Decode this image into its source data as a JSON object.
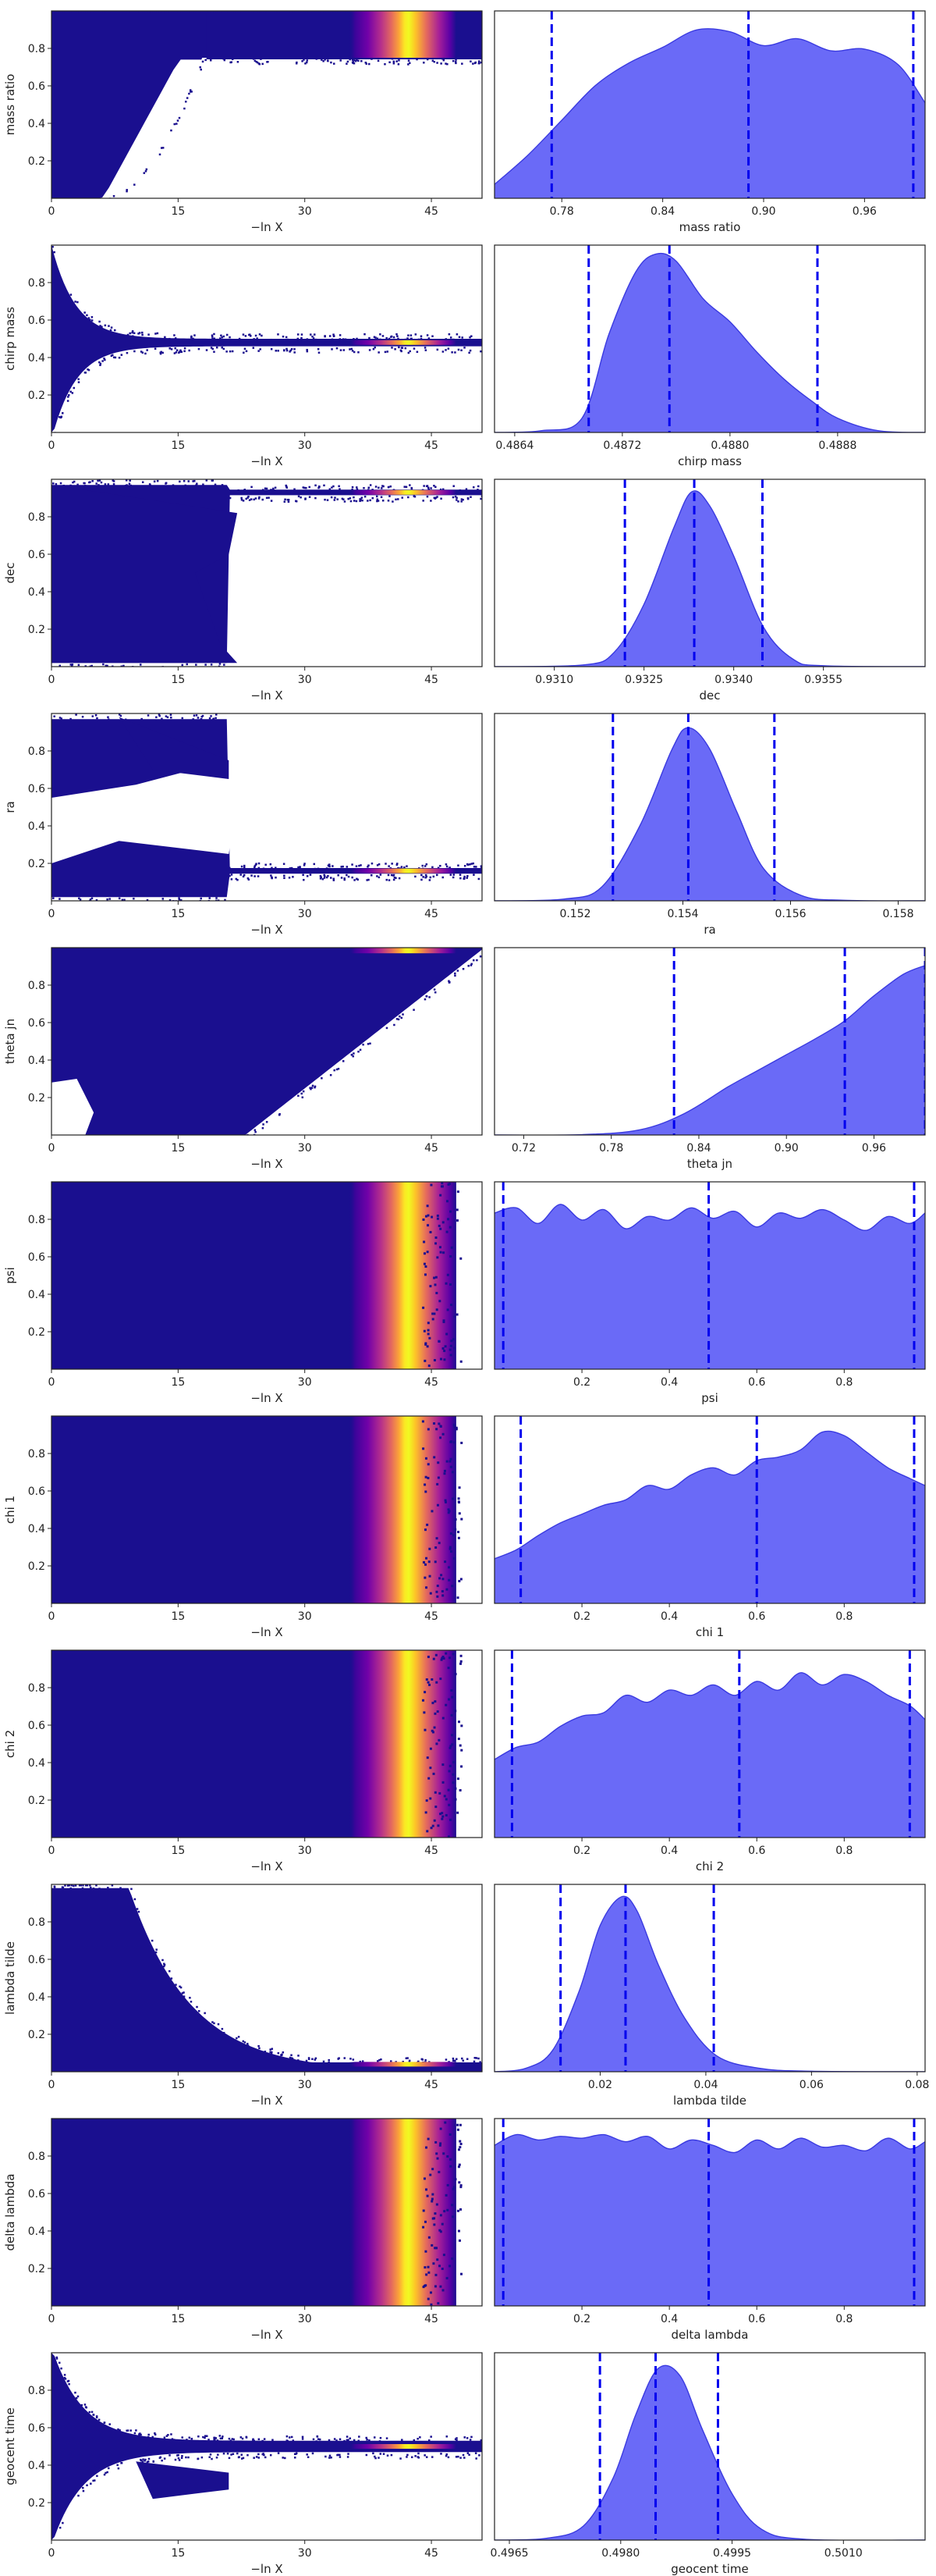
{
  "figure": {
    "xlabel_trace": "−ln X"
  },
  "chart_data": [
    {
      "type": "trace",
      "param": "mass ratio",
      "ylabel": "mass ratio",
      "xlim": [
        0,
        51
      ],
      "xticks": [
        "0",
        "15",
        "30",
        "45"
      ],
      "ylim": [
        0,
        1
      ],
      "yticks": [
        "0.2",
        "0.4",
        "0.6",
        "0.8"
      ],
      "trace_shape": "plateau",
      "converge_y": 0.75,
      "spread": 0.24,
      "onset": 8,
      "band_color": "#1a0f8f"
    },
    {
      "type": "area",
      "param": "mass ratio",
      "xlabel": "mass ratio",
      "xlim": [
        0.74,
        0.996
      ],
      "xticks": [
        0.78,
        0.84,
        0.9,
        0.96
      ],
      "ylim": [
        0,
        1.08
      ],
      "quantiles": [
        0.774,
        0.891,
        0.989
      ],
      "x": [
        0.74,
        0.76,
        0.78,
        0.8,
        0.82,
        0.84,
        0.86,
        0.88,
        0.9,
        0.92,
        0.94,
        0.96,
        0.98,
        0.996
      ],
      "y": [
        0.08,
        0.25,
        0.45,
        0.65,
        0.78,
        0.87,
        0.97,
        0.96,
        0.88,
        0.92,
        0.85,
        0.86,
        0.77,
        0.55
      ]
    },
    {
      "type": "trace",
      "param": "chirp mass",
      "ylabel": "chirp mass",
      "xlim": [
        0,
        51
      ],
      "xticks": [
        "0",
        "15",
        "30",
        "45"
      ],
      "ylim": [
        0,
        1
      ],
      "yticks": [
        "0.2",
        "0.4",
        "0.6",
        "0.8"
      ],
      "trace_shape": "funnel",
      "converge_y": 0.48,
      "spread": 0.5,
      "onset": 4
    },
    {
      "type": "area",
      "param": "chirp mass",
      "xlabel": "chirp mass",
      "xlim": [
        0.48625,
        0.48945
      ],
      "xticks": [
        0.4864,
        0.4872,
        0.488,
        0.4888
      ],
      "ylim": [
        0,
        1.05
      ],
      "quantiles": [
        0.48695,
        0.48755,
        0.48865
      ],
      "x": [
        0.48625,
        0.4866,
        0.4869,
        0.4871,
        0.4873,
        0.48745,
        0.4876,
        0.4878,
        0.488,
        0.4882,
        0.4884,
        0.4886,
        0.4888,
        0.4891,
        0.48945
      ],
      "y": [
        0,
        0.01,
        0.08,
        0.55,
        0.9,
        1.0,
        0.96,
        0.75,
        0.62,
        0.45,
        0.3,
        0.18,
        0.08,
        0.01,
        0
      ]
    },
    {
      "type": "trace",
      "param": "dec",
      "ylabel": "dec",
      "xlim": [
        0,
        51
      ],
      "xticks": [
        "0",
        "15",
        "30",
        "45"
      ],
      "ylim": [
        0,
        1
      ],
      "yticks": [
        "0.2",
        "0.4",
        "0.6",
        "0.8"
      ],
      "trace_shape": "step",
      "converge_y": 0.93,
      "spread": 0.55,
      "onset": 20
    },
    {
      "type": "area",
      "param": "dec",
      "xlabel": "dec",
      "xlim": [
        0.93,
        0.9372
      ],
      "xticks": [
        0.931,
        0.9325,
        0.934,
        0.9355
      ],
      "ylim": [
        0,
        1.05
      ],
      "quantiles": [
        0.93218,
        0.93334,
        0.93448
      ],
      "x": [
        0.93,
        0.9315,
        0.932,
        0.9325,
        0.933,
        0.9333,
        0.9336,
        0.934,
        0.9345,
        0.935,
        0.9355,
        0.9372
      ],
      "y": [
        0,
        0.01,
        0.08,
        0.35,
        0.78,
        0.98,
        0.9,
        0.62,
        0.22,
        0.04,
        0.005,
        0
      ]
    },
    {
      "type": "trace",
      "param": "ra",
      "ylabel": "ra",
      "xlim": [
        0,
        51
      ],
      "xticks": [
        "0",
        "15",
        "30",
        "45"
      ],
      "ylim": [
        0,
        1
      ],
      "yticks": [
        "0.2",
        "0.4",
        "0.6",
        "0.8"
      ],
      "trace_shape": "bifurcate",
      "converge_y": 0.16,
      "spread": 0.75,
      "onset": 20
    },
    {
      "type": "area",
      "param": "ra",
      "xlabel": "ra",
      "xlim": [
        0.1505,
        0.1585
      ],
      "xticks": [
        0.152,
        0.154,
        0.156,
        0.158
      ],
      "ylim": [
        0,
        1.05
      ],
      "quantiles": [
        0.1527,
        0.1541,
        0.1557
      ],
      "x": [
        0.1505,
        0.1518,
        0.1525,
        0.1532,
        0.1538,
        0.1541,
        0.1545,
        0.155,
        0.1555,
        0.1562,
        0.157,
        0.1585
      ],
      "y": [
        0,
        0.01,
        0.08,
        0.42,
        0.85,
        0.97,
        0.85,
        0.5,
        0.18,
        0.03,
        0.003,
        0
      ]
    },
    {
      "type": "trace",
      "param": "theta jn",
      "ylabel": "theta jn",
      "xlim": [
        0,
        51
      ],
      "xticks": [
        "0",
        "15",
        "30",
        "45"
      ],
      "ylim": [
        0,
        1
      ],
      "yticks": [
        "0.2",
        "0.4",
        "0.6",
        "0.8"
      ],
      "trace_shape": "rise",
      "converge_y": 0.97,
      "spread": 0.4,
      "onset": 24
    },
    {
      "type": "area",
      "param": "theta jn",
      "xlabel": "theta jn",
      "xlim": [
        0.7,
        0.995
      ],
      "xticks": [
        0.72,
        0.78,
        0.84,
        0.9,
        0.96
      ],
      "ylim": [
        0,
        1.05
      ],
      "quantiles": [
        0.823,
        0.94,
        0.995
      ],
      "x": [
        0.7,
        0.76,
        0.8,
        0.83,
        0.86,
        0.88,
        0.9,
        0.92,
        0.94,
        0.96,
        0.98,
        0.995
      ],
      "y": [
        0,
        0.002,
        0.03,
        0.12,
        0.27,
        0.36,
        0.45,
        0.54,
        0.64,
        0.78,
        0.9,
        0.95
      ]
    },
    {
      "type": "trace",
      "param": "psi",
      "ylabel": "psi",
      "xlim": [
        0,
        51
      ],
      "xticks": [
        "0",
        "15",
        "30",
        "45"
      ],
      "ylim": [
        0,
        1
      ],
      "yticks": [
        "0.2",
        "0.4",
        "0.6",
        "0.8"
      ],
      "trace_shape": "uniform",
      "converge_y": 0.5,
      "spread": 1,
      "onset": 0
    },
    {
      "type": "area",
      "param": "psi",
      "xlabel": "psi",
      "xlim": [
        0,
        0.985
      ],
      "xticks": [
        0.2,
        0.4,
        0.6,
        0.8
      ],
      "ylim": [
        0,
        1.08
      ],
      "quantiles": [
        0.02,
        0.49,
        0.96
      ],
      "x": [
        0,
        0.05,
        0.1,
        0.15,
        0.2,
        0.25,
        0.3,
        0.35,
        0.4,
        0.45,
        0.5,
        0.55,
        0.6,
        0.65,
        0.7,
        0.75,
        0.8,
        0.85,
        0.9,
        0.95,
        0.985
      ],
      "y": [
        0.9,
        0.93,
        0.84,
        0.95,
        0.86,
        0.92,
        0.81,
        0.88,
        0.86,
        0.93,
        0.87,
        0.91,
        0.82,
        0.9,
        0.87,
        0.92,
        0.86,
        0.8,
        0.88,
        0.84,
        0.9
      ]
    },
    {
      "type": "trace",
      "param": "chi 1",
      "ylabel": "chi 1",
      "xlim": [
        0,
        51
      ],
      "xticks": [
        "0",
        "15",
        "30",
        "45"
      ],
      "ylim": [
        0,
        1
      ],
      "yticks": [
        "0.2",
        "0.4",
        "0.6",
        "0.8"
      ],
      "trace_shape": "uniform",
      "converge_y": 0.5,
      "spread": 1,
      "onset": 0
    },
    {
      "type": "area",
      "param": "chi 1",
      "xlabel": "chi 1",
      "xlim": [
        0,
        0.985
      ],
      "xticks": [
        0.2,
        0.4,
        0.6,
        0.8
      ],
      "ylim": [
        0,
        1.05
      ],
      "quantiles": [
        0.06,
        0.6,
        0.96
      ],
      "x": [
        0,
        0.05,
        0.1,
        0.15,
        0.2,
        0.25,
        0.3,
        0.35,
        0.4,
        0.45,
        0.5,
        0.55,
        0.6,
        0.65,
        0.7,
        0.75,
        0.8,
        0.85,
        0.9,
        0.95,
        0.985
      ],
      "y": [
        0.25,
        0.3,
        0.38,
        0.45,
        0.5,
        0.55,
        0.58,
        0.66,
        0.64,
        0.72,
        0.76,
        0.72,
        0.8,
        0.82,
        0.86,
        0.96,
        0.94,
        0.85,
        0.76,
        0.7,
        0.66
      ]
    },
    {
      "type": "trace",
      "param": "chi 2",
      "ylabel": "chi 2",
      "xlim": [
        0,
        51
      ],
      "xticks": [
        "0",
        "15",
        "30",
        "45"
      ],
      "ylim": [
        0,
        1
      ],
      "yticks": [
        "0.2",
        "0.4",
        "0.6",
        "0.8"
      ],
      "trace_shape": "uniform",
      "converge_y": 0.5,
      "spread": 1,
      "onset": 0
    },
    {
      "type": "area",
      "param": "chi 2",
      "xlabel": "chi 2",
      "xlim": [
        0,
        0.985
      ],
      "xticks": [
        0.2,
        0.4,
        0.6,
        0.8
      ],
      "ylim": [
        0,
        1.08
      ],
      "quantiles": [
        0.04,
        0.56,
        0.95
      ],
      "x": [
        0,
        0.05,
        0.1,
        0.15,
        0.2,
        0.25,
        0.3,
        0.35,
        0.4,
        0.45,
        0.5,
        0.55,
        0.6,
        0.65,
        0.7,
        0.75,
        0.8,
        0.85,
        0.9,
        0.95,
        0.985
      ],
      "y": [
        0.45,
        0.52,
        0.55,
        0.64,
        0.7,
        0.72,
        0.82,
        0.78,
        0.85,
        0.82,
        0.88,
        0.82,
        0.9,
        0.85,
        0.95,
        0.88,
        0.94,
        0.9,
        0.82,
        0.76,
        0.68
      ]
    },
    {
      "type": "trace",
      "param": "lambda tilde",
      "ylabel": "lambda tilde",
      "xlim": [
        0,
        51
      ],
      "xticks": [
        "0",
        "15",
        "30",
        "45"
      ],
      "ylim": [
        0,
        1
      ],
      "yticks": [
        "0.2",
        "0.4",
        "0.6",
        "0.8"
      ],
      "trace_shape": "decay",
      "converge_y": 0.04,
      "spread": 0.95,
      "onset": 18
    },
    {
      "type": "area",
      "param": "lambda tilde",
      "xlabel": "lambda tilde",
      "xlim": [
        0,
        0.0815
      ],
      "xticks": [
        0.02,
        0.04,
        0.06,
        0.08
      ],
      "ylim": [
        0,
        1.05
      ],
      "quantiles": [
        0.0125,
        0.0248,
        0.0415
      ],
      "x": [
        0,
        0.006,
        0.011,
        0.016,
        0.02,
        0.024,
        0.027,
        0.031,
        0.036,
        0.042,
        0.05,
        0.06,
        0.0815
      ],
      "y": [
        0,
        0.02,
        0.12,
        0.45,
        0.82,
        0.98,
        0.9,
        0.6,
        0.3,
        0.09,
        0.02,
        0.003,
        0
      ]
    },
    {
      "type": "trace",
      "param": "delta lambda",
      "ylabel": "delta lambda",
      "xlim": [
        0,
        51
      ],
      "xticks": [
        "0",
        "15",
        "30",
        "45"
      ],
      "ylim": [
        0,
        1
      ],
      "yticks": [
        "0.2",
        "0.4",
        "0.6",
        "0.8"
      ],
      "trace_shape": "uniform",
      "converge_y": 0.5,
      "spread": 1,
      "onset": 0
    },
    {
      "type": "area",
      "param": "delta lambda",
      "xlabel": "delta lambda",
      "xlim": [
        0,
        0.985
      ],
      "xticks": [
        0.2,
        0.4,
        0.6,
        0.8
      ],
      "ylim": [
        0,
        1.05
      ],
      "quantiles": [
        0.02,
        0.49,
        0.96
      ],
      "x": [
        0,
        0.05,
        0.1,
        0.15,
        0.2,
        0.25,
        0.3,
        0.35,
        0.4,
        0.45,
        0.5,
        0.55,
        0.6,
        0.65,
        0.7,
        0.75,
        0.8,
        0.85,
        0.9,
        0.95,
        0.985
      ],
      "y": [
        0.9,
        0.96,
        0.93,
        0.95,
        0.94,
        0.96,
        0.92,
        0.95,
        0.88,
        0.93,
        0.9,
        0.86,
        0.93,
        0.88,
        0.94,
        0.89,
        0.9,
        0.87,
        0.94,
        0.88,
        0.92
      ]
    },
    {
      "type": "trace",
      "param": "geocent time",
      "ylabel": "geocent time",
      "xlim": [
        0,
        51
      ],
      "xticks": [
        "0",
        "15",
        "30",
        "45"
      ],
      "ylim": [
        0,
        1
      ],
      "yticks": [
        "0.2",
        "0.4",
        "0.6",
        "0.8"
      ],
      "trace_shape": "fork",
      "converge_y": 0.5,
      "spread": 0.55,
      "onset": 8
    },
    {
      "type": "area",
      "param": "geocent time",
      "xlabel": "geocent time",
      "xlim": [
        0.4963,
        0.5021
      ],
      "xticks": [
        0.4965,
        0.498,
        0.4995,
        0.501
      ],
      "ylim": [
        0,
        1.05
      ],
      "quantiles": [
        0.49772,
        0.49847,
        0.49931
      ],
      "x": [
        0.4963,
        0.497,
        0.4975,
        0.4979,
        0.4982,
        0.4985,
        0.4988,
        0.4991,
        0.4995,
        0.4999,
        0.5005,
        0.5021
      ],
      "y": [
        0,
        0.01,
        0.08,
        0.35,
        0.7,
        0.96,
        0.92,
        0.62,
        0.26,
        0.06,
        0.004,
        0
      ]
    }
  ]
}
